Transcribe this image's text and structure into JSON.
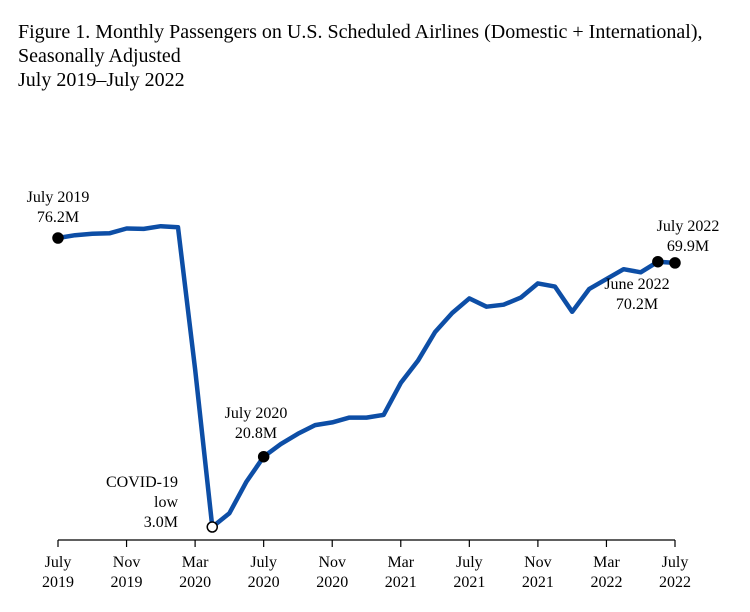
{
  "chart_data": {
    "type": "line",
    "title": "Figure 1. Monthly Passengers on U.S. Scheduled Airlines (Domestic + International),",
    "title_line2": "Seasonally Adjusted",
    "subtitle": "July 2019–July 2022",
    "xlabel": "",
    "ylabel": "",
    "grid": false,
    "legend": "none",
    "line_color": "#0d4ea6",
    "x_tick_labels": [
      {
        "index": 0,
        "month": "July",
        "year": "2019"
      },
      {
        "index": 4,
        "month": "Nov",
        "year": "2019"
      },
      {
        "index": 8,
        "month": "Mar",
        "year": "2020"
      },
      {
        "index": 12,
        "month": "July",
        "year": "2020"
      },
      {
        "index": 16,
        "month": "Nov",
        "year": "2020"
      },
      {
        "index": 20,
        "month": "Mar",
        "year": "2021"
      },
      {
        "index": 24,
        "month": "July",
        "year": "2021"
      },
      {
        "index": 28,
        "month": "Nov",
        "year": "2021"
      },
      {
        "index": 32,
        "month": "Mar",
        "year": "2022"
      },
      {
        "index": 36,
        "month": "July",
        "year": "2022"
      }
    ],
    "x": [
      "Jul 2019",
      "Aug 2019",
      "Sep 2019",
      "Oct 2019",
      "Nov 2019",
      "Dec 2019",
      "Jan 2020",
      "Feb 2020",
      "Mar 2020",
      "Apr 2020",
      "May 2020",
      "Jun 2020",
      "Jul 2020",
      "Aug 2020",
      "Sep 2020",
      "Oct 2020",
      "Nov 2020",
      "Dec 2020",
      "Jan 2021",
      "Feb 2021",
      "Mar 2021",
      "Apr 2021",
      "May 2021",
      "Jun 2021",
      "Jul 2021",
      "Aug 2021",
      "Sep 2021",
      "Oct 2021",
      "Nov 2021",
      "Dec 2021",
      "Jan 2022",
      "Feb 2022",
      "Mar 2022",
      "Apr 2022",
      "May 2022",
      "Jun 2022",
      "Jul 2022"
    ],
    "series": [
      {
        "name": "",
        "values": [
          76.2,
          76.9,
          77.3,
          77.4,
          78.6,
          78.5,
          79.2,
          78.9,
          43.0,
          3.0,
          6.5,
          14.5,
          20.8,
          24.0,
          26.6,
          28.8,
          29.5,
          30.7,
          30.7,
          31.4,
          39.5,
          45.1,
          52.4,
          57.2,
          60.9,
          58.8,
          59.3,
          61.1,
          64.7,
          63.9,
          57.5,
          63.3,
          65.8,
          68.3,
          67.5,
          70.2,
          69.9
        ]
      }
    ],
    "ylim": [
      0,
      85
    ],
    "annotations": [
      {
        "index": 0,
        "lines": [
          "July 2019",
          "76.2M"
        ],
        "marker": "filled"
      },
      {
        "index": 9,
        "lines": [
          "COVID-19",
          "low",
          "3.0M"
        ],
        "marker": "open"
      },
      {
        "index": 12,
        "lines": [
          "July 2020",
          "20.8M"
        ],
        "marker": "filled"
      },
      {
        "index": 35,
        "lines": [
          "June 2022",
          "70.2M"
        ],
        "marker": "filled"
      },
      {
        "index": 36,
        "lines": [
          "July 2022",
          "69.9M"
        ],
        "marker": "filled"
      }
    ]
  }
}
